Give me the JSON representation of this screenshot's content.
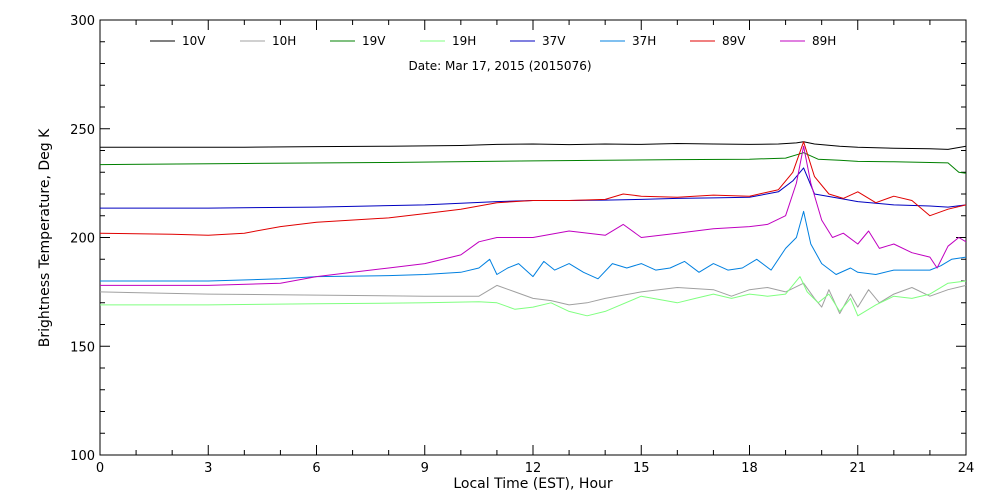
{
  "chart_data": {
    "type": "line",
    "xlabel": "Local Time (EST), Hour",
    "ylabel": "Brightness Temperature, Deg K",
    "annotation": "Date: Mar 17, 2015 (2015076)",
    "xlim": [
      0,
      24
    ],
    "ylim": [
      100,
      300
    ],
    "xticks": [
      "0",
      "3",
      "6",
      "9",
      "12",
      "15",
      "18",
      "21",
      "24"
    ],
    "yticks": [
      "100",
      "150",
      "200",
      "250",
      "300"
    ],
    "grid": false,
    "legend_position": "top",
    "series": [
      {
        "name": "10V",
        "color": "#000000",
        "x": [
          0,
          2,
          4,
          6,
          8,
          10,
          11,
          12,
          13,
          14,
          15,
          16,
          17,
          18,
          18.8,
          19.3,
          19.5,
          19.8,
          20.5,
          21,
          22,
          23,
          23.5,
          24
        ],
        "y": [
          241.5,
          241.5,
          241.5,
          241.8,
          242,
          242.3,
          242.8,
          243,
          242.7,
          243,
          242.8,
          243.2,
          243,
          242.8,
          243,
          243.5,
          244,
          243,
          242,
          241.5,
          241,
          240.8,
          240.5,
          242
        ]
      },
      {
        "name": "10H",
        "color": "#a0a0a0",
        "x": [
          0,
          3,
          6,
          9,
          10.5,
          11,
          11.5,
          12,
          12.5,
          13,
          13.5,
          14,
          15,
          16,
          17,
          17.5,
          18,
          18.5,
          19,
          19.5,
          19.8,
          20,
          20.2,
          20.5,
          20.8,
          21,
          21.3,
          21.6,
          22,
          22.5,
          23,
          23.5,
          24
        ],
        "y": [
          175,
          174,
          173.5,
          173,
          173,
          178,
          175,
          172,
          171,
          169,
          170,
          172,
          175,
          177,
          176,
          173,
          176,
          177,
          175,
          179,
          172,
          168,
          176,
          165,
          174,
          168,
          176,
          170,
          174,
          177,
          173,
          176,
          178
        ]
      },
      {
        "name": "19V",
        "color": "#008000",
        "x": [
          0,
          4,
          8,
          12,
          16,
          18,
          19,
          19.5,
          19.9,
          20.5,
          21,
          22,
          23.5,
          23.8,
          24
        ],
        "y": [
          233.5,
          234,
          234.5,
          235.2,
          235.8,
          236,
          236.5,
          239,
          236,
          235.5,
          235,
          234.8,
          234.3,
          230,
          229.5
        ]
      },
      {
        "name": "19H",
        "color": "#80ff80",
        "x": [
          0,
          3,
          6,
          9,
          10.5,
          11,
          11.5,
          12,
          12.5,
          13,
          13.5,
          14,
          15,
          16,
          16.5,
          17,
          17.5,
          18,
          18.5,
          19,
          19.4,
          19.6,
          19.9,
          20.2,
          20.5,
          20.8,
          21,
          21.5,
          22,
          22.5,
          23,
          23.5,
          24
        ],
        "y": [
          169,
          169,
          169.5,
          170,
          170.5,
          170,
          167,
          168,
          170,
          166,
          164,
          166,
          173,
          170,
          172,
          174,
          172,
          174,
          173,
          174,
          182,
          175,
          170,
          174,
          166,
          172,
          164,
          169,
          173,
          172,
          174,
          179,
          180
        ]
      },
      {
        "name": "37V",
        "color": "#0000c0",
        "x": [
          0,
          3,
          6,
          9,
          11,
          12,
          13,
          14,
          15,
          16,
          17,
          18,
          18.8,
          19.2,
          19.5,
          19.8,
          20.5,
          21,
          22,
          23,
          23.5,
          24
        ],
        "y": [
          213.5,
          213.5,
          214,
          215,
          216.5,
          217,
          217,
          217.2,
          217.5,
          218,
          218.2,
          218.5,
          221,
          226,
          232,
          220,
          218,
          216.5,
          215,
          214.5,
          214,
          215
        ]
      },
      {
        "name": "37H",
        "color": "#0080e0",
        "x": [
          0,
          3,
          5,
          6,
          8,
          9,
          10,
          10.5,
          10.8,
          11,
          11.3,
          11.6,
          12,
          12.3,
          12.6,
          13,
          13.4,
          13.8,
          14.2,
          14.6,
          15,
          15.4,
          15.8,
          16.2,
          16.6,
          17,
          17.4,
          17.8,
          18.2,
          18.6,
          19,
          19.3,
          19.5,
          19.7,
          20,
          20.4,
          20.8,
          21,
          21.5,
          22,
          22.5,
          23,
          23.3,
          23.6,
          24
        ],
        "y": [
          180,
          180,
          181,
          182,
          182.5,
          183,
          184,
          186,
          190,
          183,
          186,
          188,
          182,
          189,
          185,
          188,
          184,
          181,
          188,
          186,
          188,
          185,
          186,
          189,
          184,
          188,
          185,
          186,
          190,
          185,
          195,
          200,
          212,
          197,
          188,
          183,
          186,
          184,
          183,
          185,
          185,
          185,
          187,
          190,
          191
        ]
      },
      {
        "name": "89V",
        "color": "#e00000",
        "x": [
          0,
          2,
          3,
          4,
          5,
          6,
          8,
          9,
          10,
          11,
          12,
          13,
          14,
          14.5,
          15,
          16,
          17,
          18,
          18.8,
          19.2,
          19.5,
          19.8,
          20.2,
          20.6,
          21,
          21.5,
          22,
          22.5,
          23,
          23.5,
          24
        ],
        "y": [
          202,
          201.5,
          201,
          202,
          205,
          207,
          209,
          211,
          213,
          216,
          217,
          217,
          217.5,
          220,
          219,
          218.5,
          219.5,
          219,
          222,
          230,
          244,
          228,
          220,
          218,
          221,
          216,
          219,
          217,
          210,
          213,
          215
        ]
      },
      {
        "name": "89H",
        "color": "#c000c0",
        "x": [
          0,
          3,
          5,
          6,
          7,
          8,
          9,
          10,
          10.5,
          11,
          12,
          13,
          14,
          14.5,
          15,
          16,
          17,
          18,
          18.5,
          19,
          19.3,
          19.5,
          19.7,
          20,
          20.3,
          20.6,
          21,
          21.3,
          21.6,
          22,
          22.5,
          23,
          23.2,
          23.5,
          23.8,
          24
        ],
        "y": [
          178,
          178,
          179,
          182,
          184,
          186,
          188,
          192,
          198,
          200,
          200,
          203,
          201,
          206,
          200,
          202,
          204,
          205,
          206,
          210,
          225,
          242,
          225,
          208,
          200,
          202,
          197,
          203,
          195,
          197,
          193,
          191,
          186,
          196,
          200,
          198
        ]
      }
    ]
  }
}
